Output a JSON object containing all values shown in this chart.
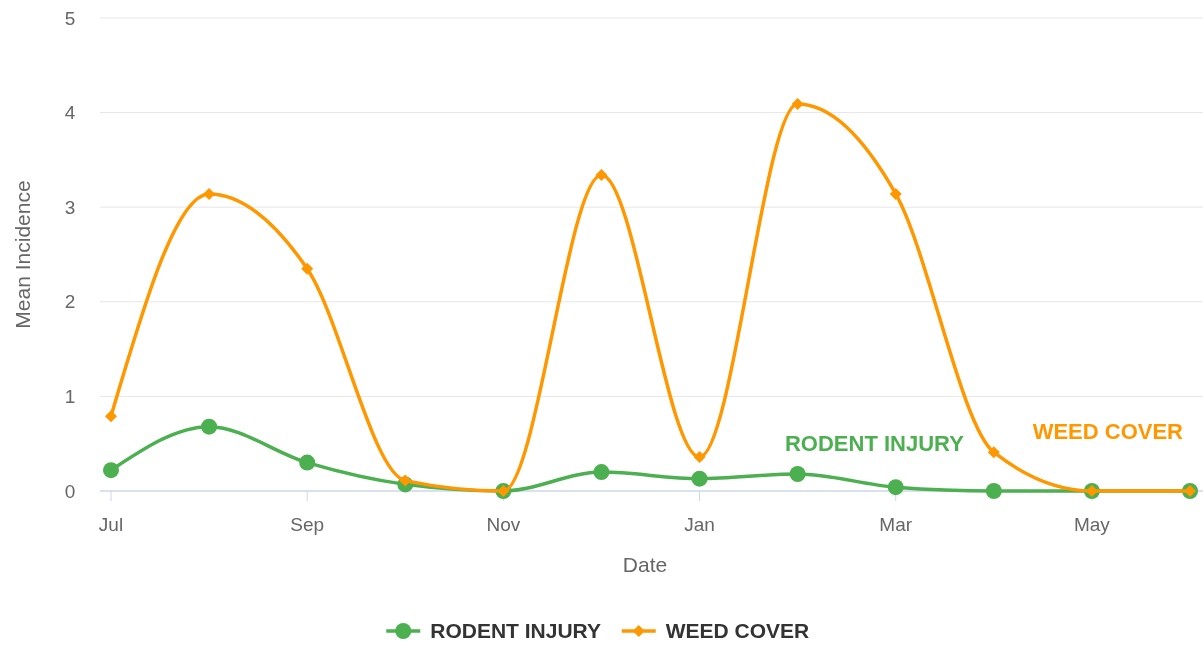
{
  "chart_data": {
    "type": "line",
    "xlabel": "Date",
    "ylabel": "Mean Incidence",
    "categories": [
      "Jul",
      null,
      "Sep",
      null,
      "Nov",
      null,
      "Jan",
      null,
      "Mar",
      null,
      "May",
      null
    ],
    "ylim": [
      0,
      5
    ],
    "yticks": [
      0,
      1,
      2,
      3,
      4,
      5
    ],
    "grid": "y",
    "legend": "bottom",
    "series": [
      {
        "name": "RODENT INJURY",
        "color": "#4caf50",
        "marker": "circle",
        "values": [
          0.22,
          0.68,
          0.3,
          0.07,
          0,
          0.2,
          0.13,
          0.18,
          0.04,
          0,
          0,
          0
        ]
      },
      {
        "name": "WEED COVER",
        "color": "#ff9800",
        "marker": "diamond",
        "values": [
          0.79,
          3.14,
          2.35,
          0.11,
          0,
          3.34,
          0.36,
          4.09,
          3.14,
          0.41,
          0,
          0
        ]
      }
    ]
  }
}
